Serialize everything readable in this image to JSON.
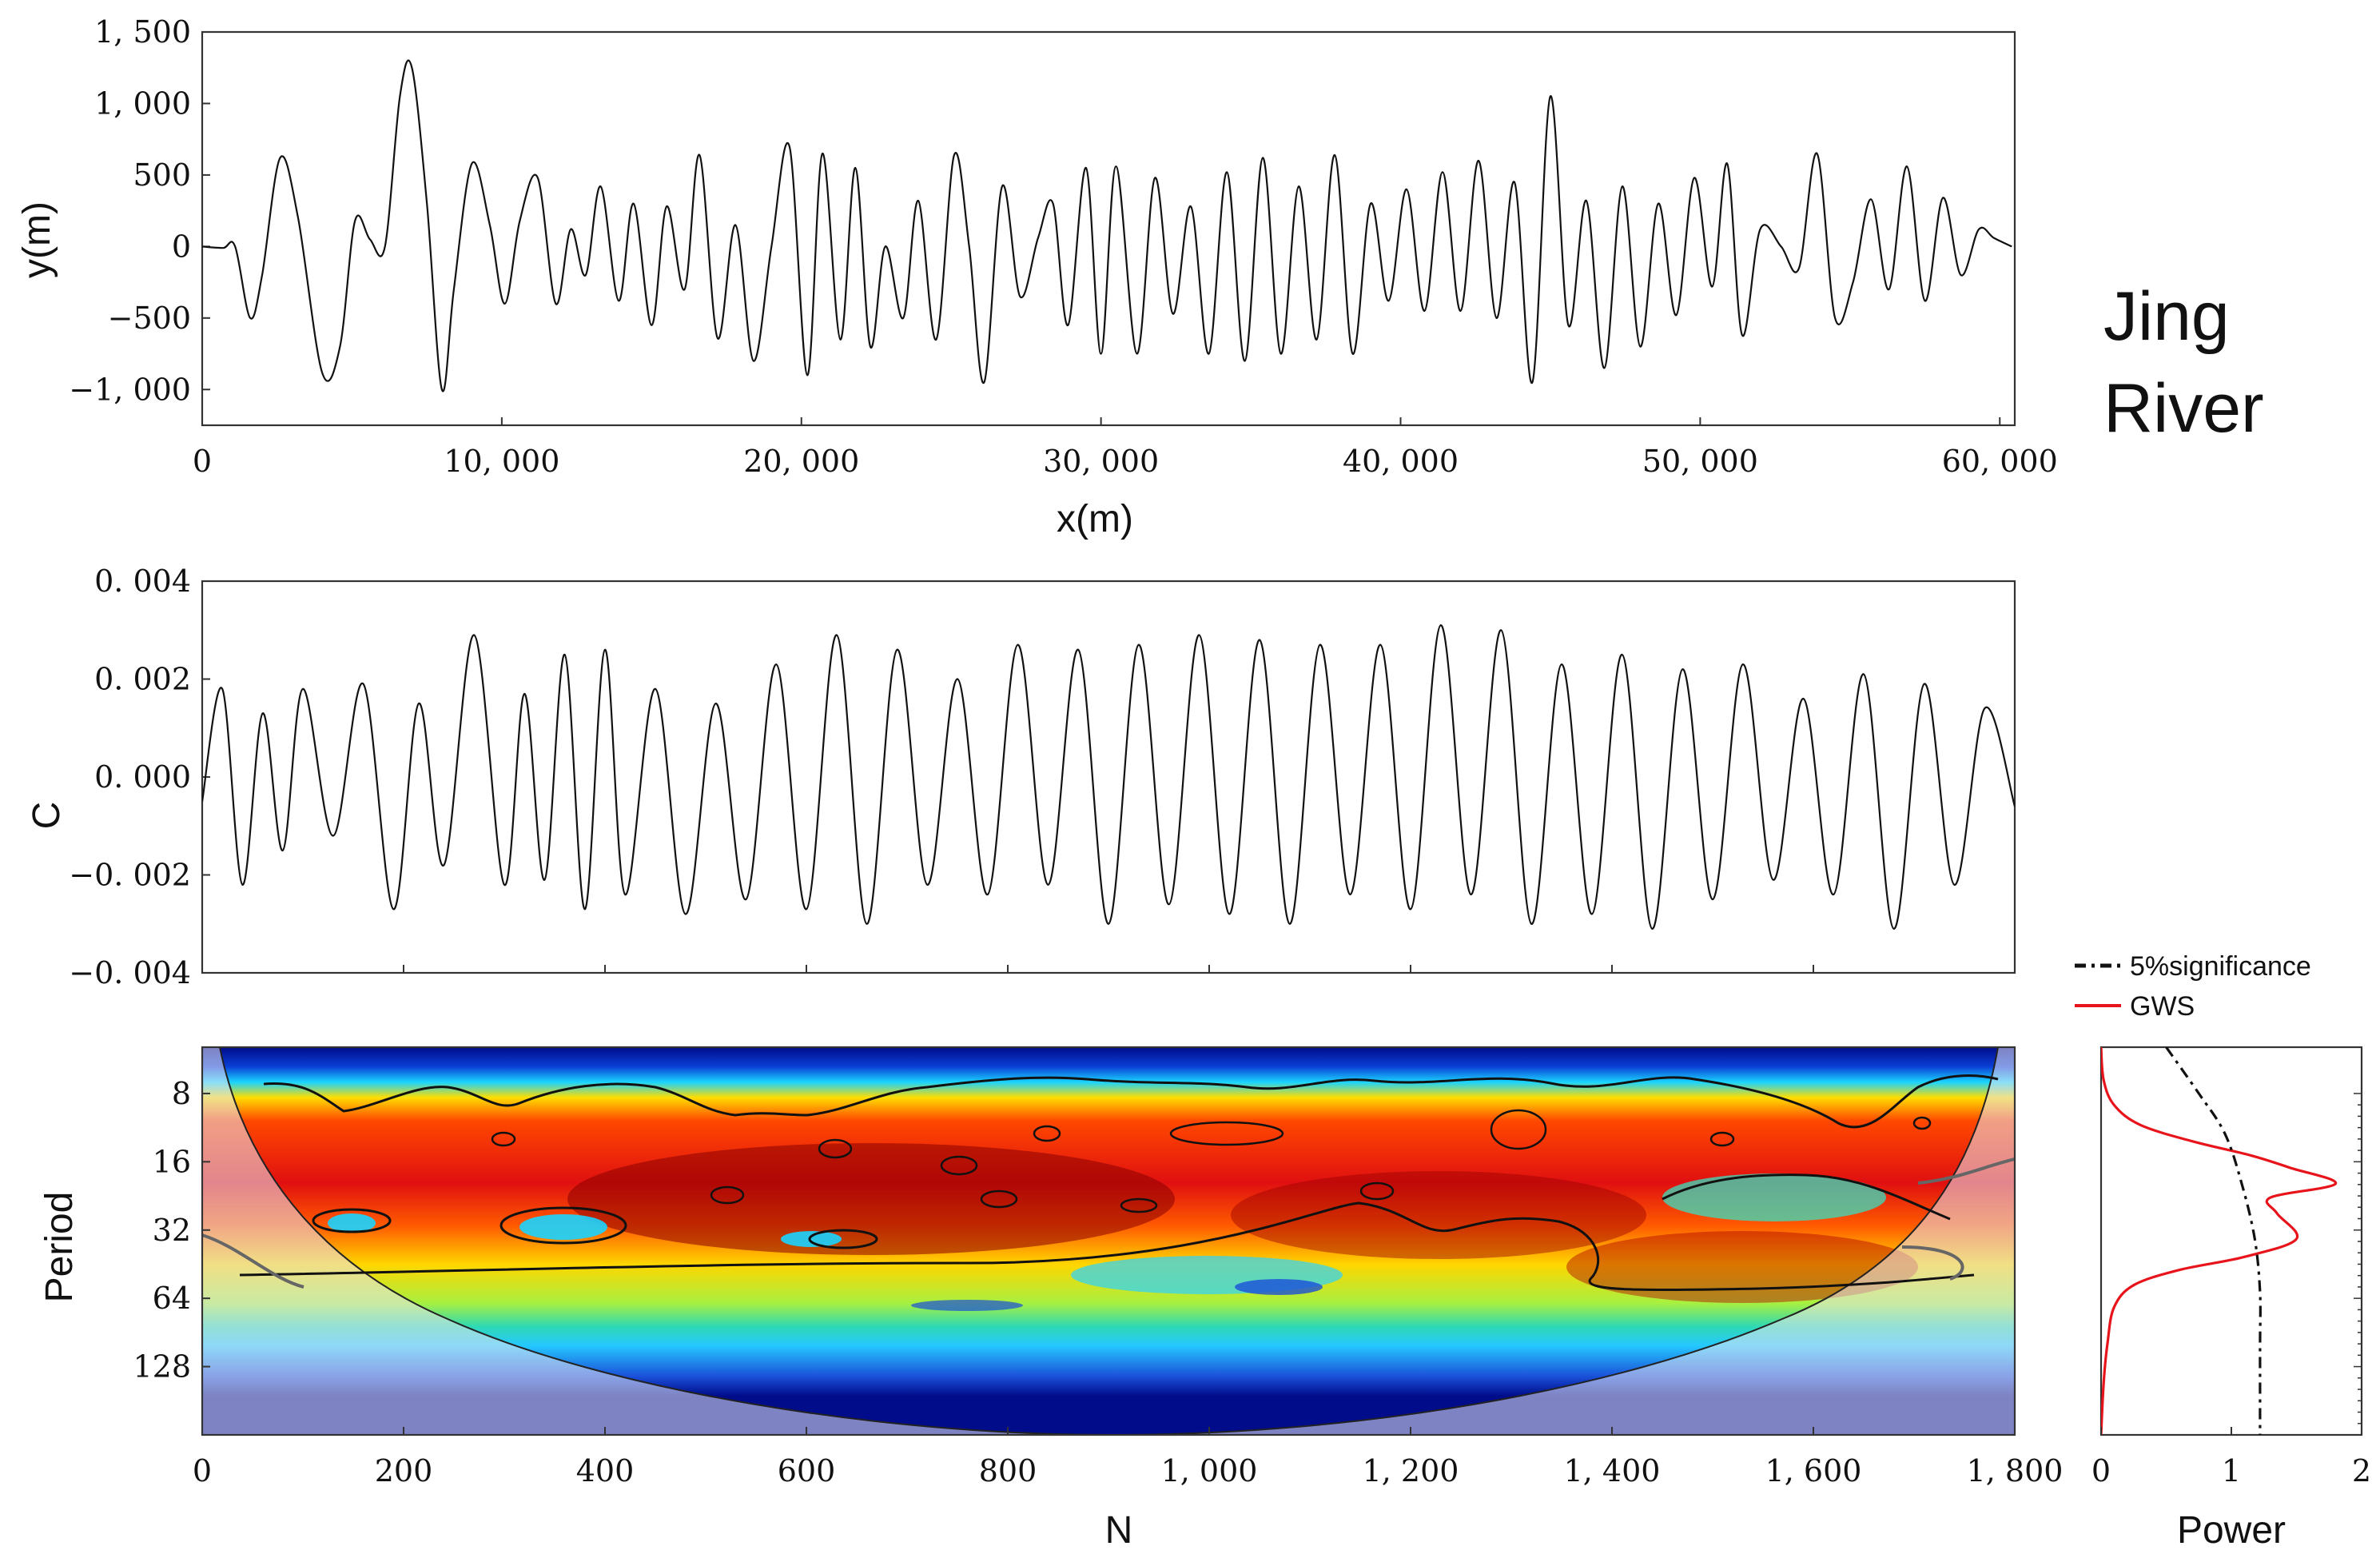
{
  "title": {
    "line1": "Jing",
    "line2": "River"
  },
  "chart_data": [
    {
      "id": "planform",
      "type": "line",
      "xlabel": "x(m)",
      "ylabel": "y(m)",
      "xlim": [
        0,
        60500
      ],
      "ylim": [
        -1250,
        1500
      ],
      "xticks": [
        0,
        10000,
        20000,
        30000,
        40000,
        50000,
        60000
      ],
      "xtick_labels": [
        "0",
        "10, 000",
        "20, 000",
        "30, 000",
        "40, 000",
        "50, 000",
        "60, 000"
      ],
      "yticks": [
        -1000,
        -500,
        0,
        500,
        1000,
        1500
      ],
      "ytick_labels": [
        "−1, 000",
        "−500",
        "0",
        "500",
        "1, 000",
        "1, 500"
      ],
      "series": [
        {
          "name": "centerline",
          "x": [
            0,
            700,
            1100,
            1600,
            2000,
            2600,
            3200,
            4000,
            4600,
            5100,
            5600,
            6100,
            6600,
            7000,
            7500,
            8000,
            8400,
            9000,
            9600,
            10100,
            10600,
            11200,
            11800,
            12300,
            12800,
            13300,
            13900,
            14400,
            15000,
            15500,
            16100,
            16600,
            17200,
            17800,
            18400,
            19000,
            19600,
            20200,
            20700,
            21300,
            21800,
            22300,
            22800,
            23400,
            23900,
            24500,
            25100,
            25600,
            26100,
            26700,
            27300,
            27900,
            28400,
            28900,
            29500,
            30000,
            30500,
            31200,
            31800,
            32400,
            33000,
            33600,
            34200,
            34800,
            35400,
            36000,
            36600,
            37200,
            37800,
            38400,
            39000,
            39600,
            40200,
            40800,
            41400,
            42000,
            42600,
            43200,
            43800,
            44400,
            45000,
            45600,
            46200,
            46800,
            47400,
            48000,
            48600,
            49200,
            49800,
            50400,
            50900,
            51400,
            52000,
            52700,
            53300,
            53900,
            54500,
            55100,
            55700,
            56300,
            56900,
            57500,
            58100,
            58700,
            59300,
            59800,
            60400
          ],
          "y": [
            0,
            -10,
            0,
            -500,
            -200,
            620,
            200,
            -880,
            -700,
            180,
            50,
            0,
            1050,
            1250,
            300,
            -1000,
            -300,
            580,
            150,
            -400,
            180,
            480,
            -400,
            120,
            -200,
            420,
            -380,
            300,
            -550,
            280,
            -300,
            640,
            -640,
            150,
            -800,
            0,
            700,
            -900,
            650,
            -650,
            550,
            -700,
            0,
            -500,
            320,
            -650,
            640,
            0,
            -950,
            420,
            -350,
            60,
            300,
            -550,
            550,
            -750,
            560,
            -750,
            480,
            -470,
            280,
            -750,
            520,
            -800,
            620,
            -750,
            420,
            -650,
            640,
            -750,
            300,
            -380,
            400,
            -450,
            520,
            -450,
            600,
            -500,
            450,
            -950,
            1050,
            -550,
            320,
            -850,
            420,
            -700,
            300,
            -480,
            480,
            -280,
            580,
            -620,
            120,
            0,
            -150,
            650,
            -500,
            -250,
            330,
            -300,
            560,
            -380,
            340,
            -200,
            120,
            60,
            0
          ]
        }
      ]
    },
    {
      "id": "curvature",
      "type": "line",
      "xlabel": "",
      "ylabel": "C",
      "xlim": [
        0,
        1800
      ],
      "ylim": [
        -0.004,
        0.004
      ],
      "yticks": [
        -0.004,
        -0.002,
        0.0,
        0.002,
        0.004
      ],
      "ytick_labels": [
        "−0. 004",
        "−0. 002",
        "0. 000",
        "0. 002",
        "0. 004"
      ],
      "series": [
        {
          "name": "C",
          "x": [
            0,
            20,
            40,
            60,
            80,
            100,
            130,
            160,
            190,
            215,
            240,
            270,
            300,
            320,
            340,
            360,
            380,
            400,
            420,
            450,
            480,
            510,
            540,
            570,
            600,
            630,
            660,
            690,
            720,
            750,
            780,
            810,
            840,
            870,
            900,
            930,
            960,
            990,
            1020,
            1050,
            1080,
            1110,
            1140,
            1170,
            1200,
            1230,
            1260,
            1290,
            1320,
            1350,
            1380,
            1410,
            1440,
            1470,
            1500,
            1530,
            1560,
            1590,
            1620,
            1650,
            1680,
            1710,
            1740,
            1770,
            1800
          ],
          "y": [
            -0.0005,
            0.0018,
            -0.0022,
            0.0013,
            -0.0015,
            0.0018,
            -0.0012,
            0.0019,
            -0.0027,
            0.0015,
            -0.0018,
            0.0029,
            -0.0022,
            0.0017,
            -0.0021,
            0.0025,
            -0.0027,
            0.0026,
            -0.0024,
            0.0018,
            -0.0028,
            0.0015,
            -0.0025,
            0.0023,
            -0.0027,
            0.0029,
            -0.003,
            0.0026,
            -0.0022,
            0.002,
            -0.0024,
            0.0027,
            -0.0022,
            0.0026,
            -0.003,
            0.0027,
            -0.0026,
            0.0029,
            -0.0028,
            0.0028,
            -0.003,
            0.0027,
            -0.0024,
            0.0027,
            -0.0027,
            0.0031,
            -0.0024,
            0.003,
            -0.003,
            0.0023,
            -0.0028,
            0.0025,
            -0.0031,
            0.0022,
            -0.0025,
            0.0023,
            -0.0021,
            0.0016,
            -0.0024,
            0.0021,
            -0.0031,
            0.0019,
            -0.0022,
            0.0014,
            -0.0006
          ]
        }
      ]
    },
    {
      "id": "wavelet",
      "type": "heatmap",
      "xlabel": "N",
      "ylabel": "Period",
      "xlim": [
        0,
        1800
      ],
      "xticks": [
        0,
        200,
        400,
        600,
        800,
        1000,
        1200,
        1400,
        1600,
        1800
      ],
      "xtick_labels": [
        "0",
        "200",
        "400",
        "600",
        "800",
        "1, 000",
        "1, 200",
        "1, 400",
        "1, 600",
        "1, 800"
      ],
      "period_range": [
        5,
        256
      ],
      "yticks": [
        8,
        16,
        32,
        64,
        128
      ],
      "ytick_labels": [
        "8",
        "16",
        "32",
        "64",
        "128"
      ],
      "high_power_band": {
        "period_from": 10,
        "period_to": 45
      }
    },
    {
      "id": "global-spectrum",
      "type": "line",
      "xlabel": "Power",
      "xlim": [
        0,
        2
      ],
      "xticks": [
        0,
        1,
        2
      ],
      "xtick_labels": [
        "0",
        "1",
        "2"
      ],
      "period_range": [
        5,
        256
      ],
      "legend": [
        "5%significance",
        "GWS"
      ],
      "series": [
        {
          "name": "GWS",
          "color": "#e8141b",
          "power": [
            0.0,
            0.02,
            0.1,
            0.3,
            0.7,
            1.15,
            1.45,
            1.8,
            1.3,
            1.35,
            1.5,
            1.1,
            0.6,
            0.25,
            0.1,
            0.05,
            0.02,
            0.0
          ],
          "period": [
            5,
            7,
            9,
            11,
            13,
            15,
            17,
            20,
            23,
            27,
            35,
            42,
            48,
            56,
            70,
            100,
            150,
            256
          ]
        },
        {
          "name": "5%significance",
          "color": "#111111",
          "power": [
            0.5,
            0.75,
            0.95,
            1.08,
            1.18,
            1.22,
            1.22,
            1.22,
            1.22
          ],
          "period": [
            5,
            8,
            12,
            20,
            35,
            60,
            100,
            160,
            256
          ]
        }
      ]
    }
  ]
}
